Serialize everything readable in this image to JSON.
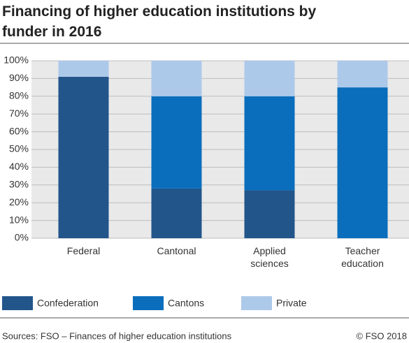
{
  "chart_data": {
    "type": "stacked_bar",
    "title": "Financing of higher education institutions by funder in 2016",
    "categories": [
      "Federal",
      "Cantonal",
      "Applied sciences",
      "Teacher education"
    ],
    "series": [
      {
        "name": "Confederation",
        "color": "#22558a",
        "values": [
          91,
          28,
          27,
          0
        ]
      },
      {
        "name": "Cantons",
        "color": "#0a6ebd",
        "values": [
          0,
          52,
          53,
          85
        ]
      },
      {
        "name": "Private",
        "color": "#adc9ea",
        "values": [
          9,
          20,
          20,
          15
        ]
      }
    ],
    "ylim": [
      0,
      100
    ],
    "yticks": [
      {
        "value": 0,
        "label": "0%"
      },
      {
        "value": 10,
        "label": "10%"
      },
      {
        "value": 20,
        "label": "20%"
      },
      {
        "value": 30,
        "label": "30%"
      },
      {
        "value": 40,
        "label": "40%"
      },
      {
        "value": 50,
        "label": "50%"
      },
      {
        "value": 60,
        "label": "60%"
      },
      {
        "value": 70,
        "label": "70%"
      },
      {
        "value": 80,
        "label": "80%"
      },
      {
        "value": 90,
        "label": "90%"
      },
      {
        "value": 100,
        "label": "100%"
      }
    ],
    "grid": true,
    "source": "Sources: FSO – Finances of higher education institutions",
    "copyright": "© FSO 2018"
  }
}
